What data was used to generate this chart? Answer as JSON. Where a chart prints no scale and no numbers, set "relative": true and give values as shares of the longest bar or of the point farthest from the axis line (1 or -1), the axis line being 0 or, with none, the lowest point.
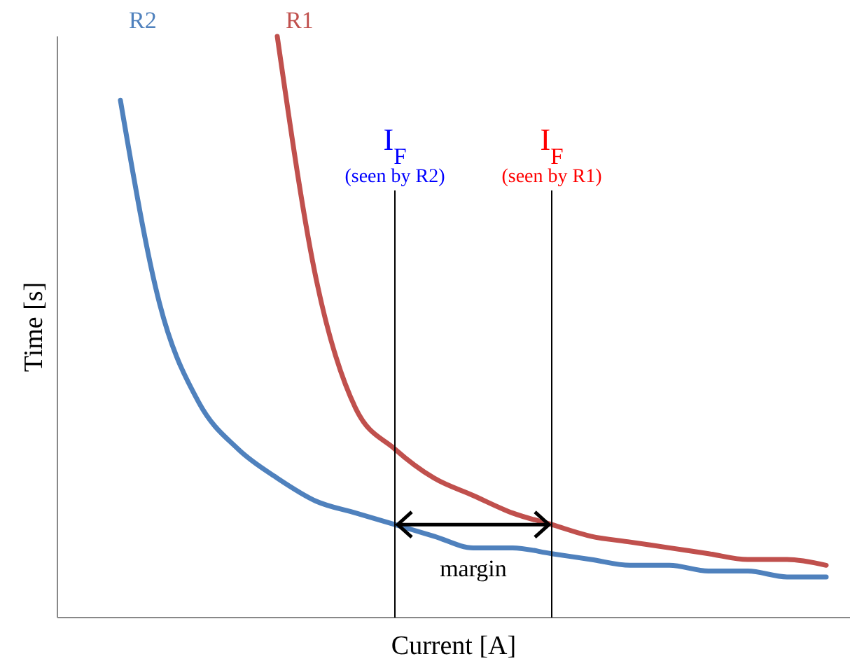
{
  "chart_data": {
    "type": "line",
    "relative": true,
    "xlabel": "Current [A]",
    "ylabel": "Time [s]",
    "categories": [
      null,
      null,
      null,
      null,
      null,
      null,
      null,
      null,
      null,
      null,
      null,
      null,
      null,
      null,
      null,
      null,
      null,
      null,
      null,
      null
    ],
    "series": [
      {
        "name": "R2",
        "color": "#4f81bd",
        "values": [
          null,
          0.89,
          0.54,
          0.37,
          0.29,
          0.24,
          0.2,
          0.18,
          0.16,
          0.14,
          0.12,
          0.12,
          0.11,
          0.1,
          0.09,
          0.09,
          0.08,
          0.08,
          0.07,
          0.07
        ]
      },
      {
        "name": "R1",
        "color": "#c0504d",
        "values": [
          null,
          null,
          null,
          null,
          null,
          1,
          0.58,
          0.36,
          0.29,
          0.24,
          0.21,
          0.18,
          0.16,
          0.14,
          0.13,
          0.12,
          0.11,
          0.1,
          0.1,
          0.09
        ]
      }
    ],
    "annotations": [
      "I$_{F}$\n(seen by R2)",
      "I$_{F}$\n(seen by R1)",
      "margin"
    ],
    "marker": "none",
    "line_style": "solid"
  }
}
